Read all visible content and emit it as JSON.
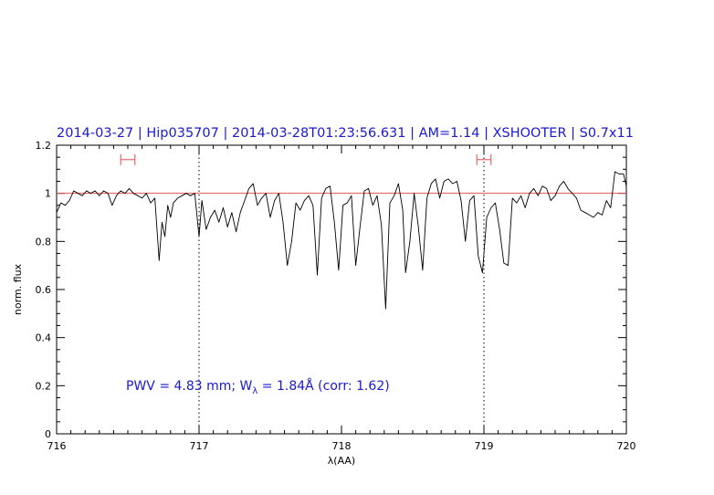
{
  "chart_data": {
    "type": "line",
    "title": "2014-03-27 | Hip035707 | 2014-03-28T01:23:56.631 | AM=1.14 | XSHOOTER | S0.7x11",
    "xlabel": "λ(AA)",
    "ylabel": "norm. flux",
    "xlim": [
      716,
      720
    ],
    "ylim": [
      0,
      1.2
    ],
    "xticks": [
      716,
      717,
      718,
      719,
      720
    ],
    "yticks": [
      0,
      0.2,
      0.4,
      0.6,
      0.8,
      1,
      1.2
    ],
    "xtick_labels": [
      "716",
      "717",
      "718",
      "719",
      "720"
    ],
    "ytick_labels": [
      "0",
      "0.2",
      "0.4",
      "0.6",
      "0.8",
      "1",
      "1.2"
    ],
    "grid": false,
    "reference_line": {
      "y": 1.0,
      "color": "#e05050"
    },
    "vertical_markers": [
      717.0,
      719.0
    ],
    "continuum_windows": [
      {
        "x1": 716.45,
        "x2": 716.55,
        "y": 1.14
      },
      {
        "x1": 718.95,
        "x2": 719.05,
        "y": 1.14
      }
    ],
    "annotation": {
      "pwv_text": "PWV  =  4.83  mm;  W",
      "lambda_sub": "λ",
      "eq_text": "  =  1.84Å  (corr:  1.62)"
    },
    "series": [
      {
        "color": "#000000",
        "x": [
          716.0,
          716.03,
          716.06,
          716.09,
          716.12,
          716.15,
          716.18,
          716.21,
          716.24,
          716.27,
          716.3,
          716.33,
          716.36,
          716.39,
          716.42,
          716.45,
          716.48,
          716.51,
          716.54,
          716.57,
          716.6,
          716.63,
          716.66,
          716.69,
          716.72,
          716.74,
          716.76,
          716.78,
          716.8,
          716.82,
          716.85,
          716.88,
          716.91,
          716.94,
          716.97,
          717.0,
          717.02,
          717.05,
          717.08,
          717.11,
          717.14,
          717.17,
          717.2,
          717.23,
          717.26,
          717.29,
          717.32,
          717.35,
          717.38,
          717.41,
          717.44,
          717.47,
          717.5,
          717.53,
          717.56,
          717.59,
          717.62,
          717.65,
          717.68,
          717.71,
          717.74,
          717.77,
          717.8,
          717.83,
          717.86,
          717.89,
          717.92,
          717.95,
          717.98,
          718.01,
          718.04,
          718.07,
          718.1,
          718.13,
          718.16,
          718.19,
          718.22,
          718.25,
          718.28,
          718.31,
          718.34,
          718.37,
          718.4,
          718.43,
          718.45,
          718.48,
          718.51,
          718.54,
          718.57,
          718.6,
          718.63,
          718.66,
          718.69,
          718.72,
          718.75,
          718.78,
          718.81,
          718.84,
          718.87,
          718.9,
          718.93,
          718.96,
          718.99,
          719.02,
          719.05,
          719.08,
          719.11,
          719.14,
          719.17,
          719.2,
          719.23,
          719.26,
          719.29,
          719.32,
          719.35,
          719.38,
          719.41,
          719.44,
          719.47,
          719.5,
          719.53,
          719.56,
          719.59,
          719.62,
          719.65,
          719.68,
          719.71,
          719.74,
          719.77,
          719.8,
          719.83,
          719.86,
          719.89,
          719.92,
          719.95,
          719.98,
          720.0
        ],
        "y": [
          0.92,
          0.96,
          0.95,
          0.97,
          1.01,
          1.0,
          0.99,
          1.01,
          1.0,
          1.01,
          0.99,
          1.01,
          1.0,
          0.95,
          0.99,
          1.01,
          1.0,
          1.02,
          1.0,
          0.99,
          0.98,
          1.0,
          0.96,
          0.98,
          0.72,
          0.88,
          0.82,
          0.95,
          0.9,
          0.96,
          0.98,
          0.99,
          1.0,
          0.99,
          1.0,
          0.82,
          0.97,
          0.85,
          0.9,
          0.93,
          0.88,
          0.94,
          0.86,
          0.92,
          0.84,
          0.92,
          0.97,
          1.02,
          1.04,
          0.95,
          0.98,
          1.0,
          0.9,
          0.97,
          1.0,
          0.88,
          0.7,
          0.8,
          0.96,
          0.93,
          0.97,
          0.99,
          0.95,
          0.66,
          0.98,
          1.02,
          1.03,
          0.88,
          0.68,
          0.95,
          0.96,
          0.99,
          0.7,
          0.86,
          1.01,
          1.02,
          0.95,
          0.99,
          0.87,
          0.52,
          0.96,
          0.99,
          1.04,
          0.93,
          0.67,
          0.8,
          1.0,
          0.86,
          0.68,
          0.98,
          1.04,
          1.06,
          0.98,
          1.05,
          1.06,
          1.04,
          1.05,
          0.97,
          0.8,
          0.97,
          0.99,
          0.74,
          0.67,
          0.9,
          0.94,
          0.96,
          0.85,
          0.71,
          0.7,
          0.98,
          0.96,
          0.99,
          0.94,
          1.0,
          1.02,
          0.99,
          1.03,
          1.02,
          0.97,
          0.99,
          1.03,
          1.05,
          1.02,
          1.0,
          0.98,
          0.93,
          0.92,
          0.91,
          0.9,
          0.92,
          0.91,
          0.97,
          0.94,
          1.09,
          1.08,
          1.08,
          1.03
        ]
      }
    ]
  }
}
